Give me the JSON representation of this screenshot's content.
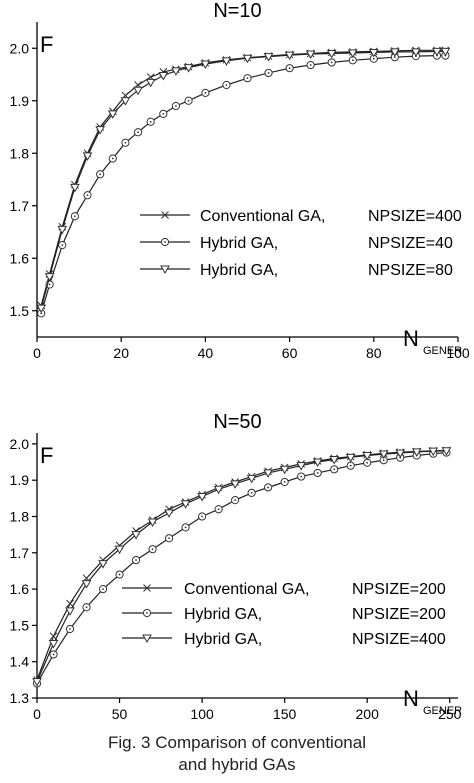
{
  "caption": {
    "line1": "Fig. 3   Comparison of conventional",
    "line2": "and hybrid GAs"
  },
  "colors": {
    "ink": "#000000",
    "curve": "#222222",
    "marker": "#333333",
    "background": "#ffffff"
  },
  "chart_data": [
    {
      "type": "line",
      "title": "N=10",
      "ylabel": "F",
      "xlabel_main": "N",
      "xlabel_sub": "GENER",
      "xlim": [
        0,
        100
      ],
      "ylim": [
        1.45,
        2.05
      ],
      "xticks": [
        0,
        20,
        40,
        60,
        80,
        100
      ],
      "yticks": [
        1.5,
        1.6,
        1.7,
        1.8,
        1.9,
        2.0
      ],
      "ytick_labels": [
        "1.5",
        "1.6",
        "1.7",
        "1.8",
        "1.9",
        "2.0"
      ],
      "grid": false,
      "legend_position": "center-right",
      "series": [
        {
          "name": "Conventional GA,",
          "param": "NPSIZE=400",
          "marker": "x",
          "x": [
            1,
            3,
            6,
            9,
            12,
            15,
            18,
            21,
            24,
            27,
            30,
            33,
            36,
            40,
            45,
            50,
            55,
            60,
            65,
            70,
            75,
            80,
            85,
            90,
            95,
            97
          ],
          "y": [
            1.51,
            1.57,
            1.66,
            1.74,
            1.8,
            1.85,
            1.88,
            1.91,
            1.93,
            1.945,
            1.955,
            1.96,
            1.965,
            1.972,
            1.978,
            1.982,
            1.985,
            1.988,
            1.99,
            1.992,
            1.993,
            1.994,
            1.995,
            1.996,
            1.996,
            1.996
          ]
        },
        {
          "name": "Hybrid GA,",
          "param": "NPSIZE=40",
          "marker": "circle",
          "x": [
            1,
            3,
            6,
            9,
            12,
            15,
            18,
            21,
            24,
            27,
            30,
            33,
            36,
            40,
            45,
            50,
            55,
            60,
            65,
            70,
            75,
            80,
            85,
            90,
            95,
            97
          ],
          "y": [
            1.495,
            1.55,
            1.625,
            1.68,
            1.72,
            1.76,
            1.79,
            1.82,
            1.84,
            1.86,
            1.875,
            1.89,
            1.9,
            1.915,
            1.93,
            1.943,
            1.953,
            1.962,
            1.968,
            1.973,
            1.977,
            1.98,
            1.983,
            1.985,
            1.986,
            1.986
          ]
        },
        {
          "name": "Hybrid GA,",
          "param": "NPSIZE=80",
          "marker": "triangle-down",
          "x": [
            1,
            3,
            6,
            9,
            12,
            15,
            18,
            21,
            24,
            27,
            30,
            33,
            36,
            40,
            45,
            50,
            55,
            60,
            65,
            70,
            75,
            80,
            85,
            90,
            95,
            97
          ],
          "y": [
            1.505,
            1.565,
            1.655,
            1.735,
            1.795,
            1.845,
            1.875,
            1.9,
            1.92,
            1.935,
            1.948,
            1.957,
            1.963,
            1.97,
            1.976,
            1.981,
            1.984,
            1.987,
            1.989,
            1.99,
            1.991,
            1.992,
            1.993,
            1.993,
            1.994,
            1.994
          ]
        }
      ]
    },
    {
      "type": "line",
      "title": "N=50",
      "ylabel": "F",
      "xlabel_main": "N",
      "xlabel_sub": "GENER",
      "xlim": [
        0,
        255
      ],
      "ylim": [
        1.3,
        2.03
      ],
      "xticks": [
        0,
        50,
        100,
        150,
        200,
        250
      ],
      "yticks": [
        1.3,
        1.4,
        1.5,
        1.6,
        1.7,
        1.8,
        1.9,
        2.0
      ],
      "ytick_labels": [
        "1.3",
        "1.4",
        "1.5",
        "1.6",
        "1.7",
        "1.8",
        "1.9",
        "2.0"
      ],
      "grid": false,
      "legend_position": "bottom-right",
      "series": [
        {
          "name": "Conventional GA,",
          "param": "NPSIZE=200",
          "marker": "x",
          "x": [
            0,
            10,
            20,
            30,
            40,
            50,
            60,
            70,
            80,
            90,
            100,
            110,
            120,
            130,
            140,
            150,
            160,
            170,
            180,
            190,
            200,
            210,
            220,
            230,
            240,
            248
          ],
          "y": [
            1.35,
            1.47,
            1.56,
            1.63,
            1.68,
            1.72,
            1.76,
            1.79,
            1.82,
            1.84,
            1.86,
            1.88,
            1.895,
            1.91,
            1.925,
            1.935,
            1.945,
            1.953,
            1.96,
            1.965,
            1.97,
            1.974,
            1.977,
            1.979,
            1.981,
            1.982
          ]
        },
        {
          "name": "Hybrid GA,",
          "param": "NPSIZE=200",
          "marker": "circle",
          "x": [
            0,
            10,
            20,
            30,
            40,
            50,
            60,
            70,
            80,
            90,
            100,
            110,
            120,
            130,
            140,
            150,
            160,
            170,
            180,
            190,
            200,
            210,
            220,
            230,
            240,
            248
          ],
          "y": [
            1.34,
            1.42,
            1.49,
            1.55,
            1.6,
            1.64,
            1.68,
            1.71,
            1.74,
            1.77,
            1.8,
            1.82,
            1.845,
            1.865,
            1.88,
            1.895,
            1.91,
            1.92,
            1.93,
            1.94,
            1.948,
            1.955,
            1.962,
            1.968,
            1.973,
            1.976
          ]
        },
        {
          "name": "Hybrid GA,",
          "param": "NPSIZE=400",
          "marker": "triangle-down",
          "x": [
            0,
            10,
            20,
            30,
            40,
            50,
            60,
            70,
            80,
            90,
            100,
            110,
            120,
            130,
            140,
            150,
            160,
            170,
            180,
            190,
            200,
            210,
            220,
            230,
            240,
            248
          ],
          "y": [
            1.345,
            1.45,
            1.54,
            1.615,
            1.67,
            1.71,
            1.75,
            1.785,
            1.81,
            1.835,
            1.855,
            1.875,
            1.89,
            1.905,
            1.92,
            1.93,
            1.94,
            1.95,
            1.957,
            1.963,
            1.968,
            1.972,
            1.975,
            1.978,
            1.98,
            1.981
          ]
        }
      ]
    }
  ]
}
